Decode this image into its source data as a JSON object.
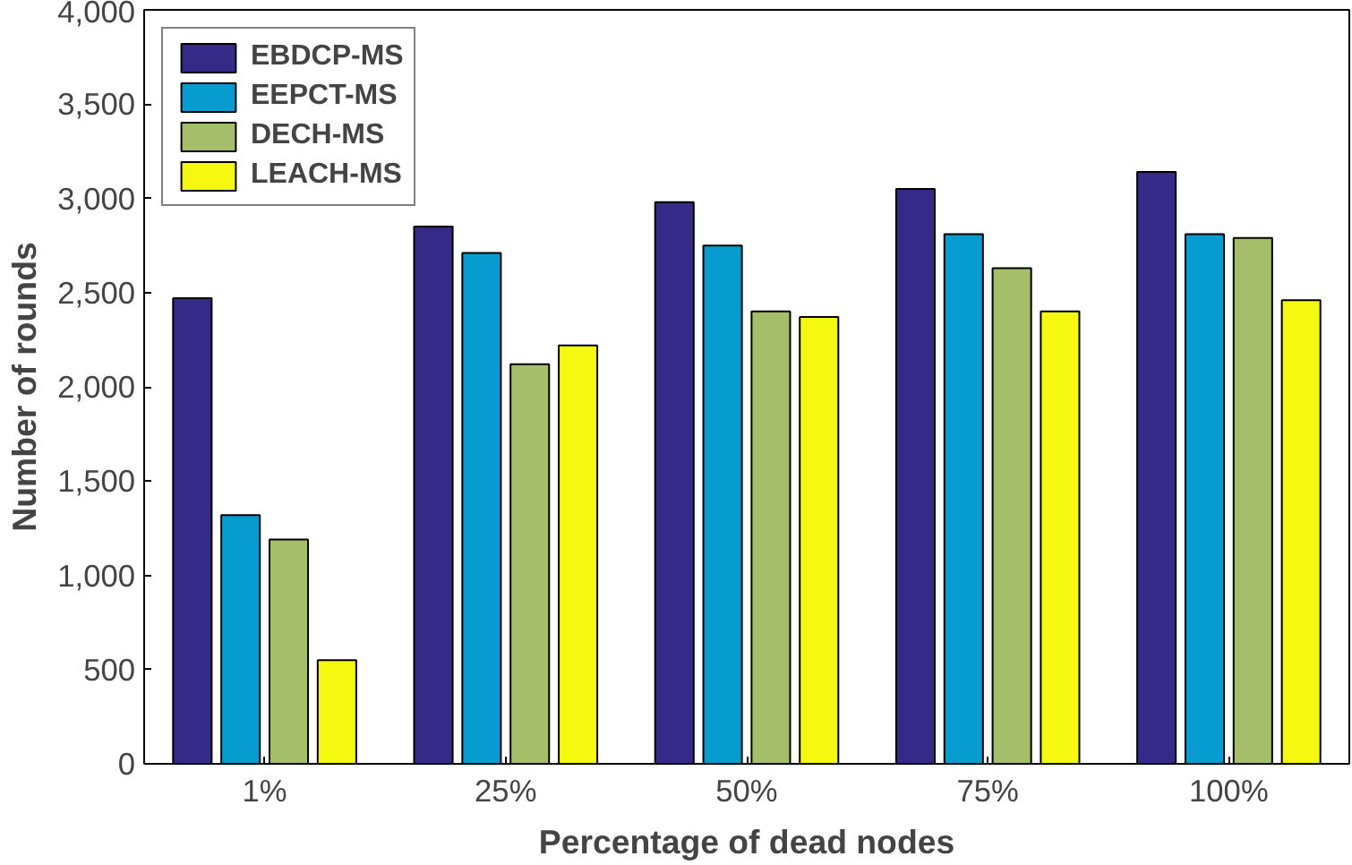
{
  "chart_data": {
    "type": "bar",
    "xlabel": "Percentage of dead nodes",
    "ylabel": "Number of rounds",
    "categories": [
      "1%",
      "25%",
      "50%",
      "75%",
      "100%"
    ],
    "series": [
      {
        "name": "EBDCP-MS",
        "color": "#352a87",
        "values": [
          2470,
          2850,
          2980,
          3050,
          3140
        ]
      },
      {
        "name": "EEPCT-MS",
        "color": "#069ccf",
        "values": [
          1320,
          2710,
          2750,
          2810,
          2810
        ]
      },
      {
        "name": "DECH-MS",
        "color": "#a5be6a",
        "values": [
          1190,
          2120,
          2400,
          2630,
          2790
        ]
      },
      {
        "name": "LEACH-MS",
        "color": "#f5f80f",
        "values": [
          550,
          2220,
          2370,
          2400,
          2460
        ]
      }
    ],
    "ylim": [
      0,
      4000
    ],
    "yticks": [
      {
        "value": 0,
        "label": "0"
      },
      {
        "value": 500,
        "label": "500"
      },
      {
        "value": 1000,
        "label": "1,000"
      },
      {
        "value": 1500,
        "label": "1,500"
      },
      {
        "value": 2000,
        "label": "2,000"
      },
      {
        "value": 2500,
        "label": "2,500"
      },
      {
        "value": 3000,
        "label": "3,000"
      },
      {
        "value": 3500,
        "label": "3,500"
      },
      {
        "value": 4000,
        "label": "4,000"
      }
    ],
    "legend": "top left",
    "grid": false
  }
}
